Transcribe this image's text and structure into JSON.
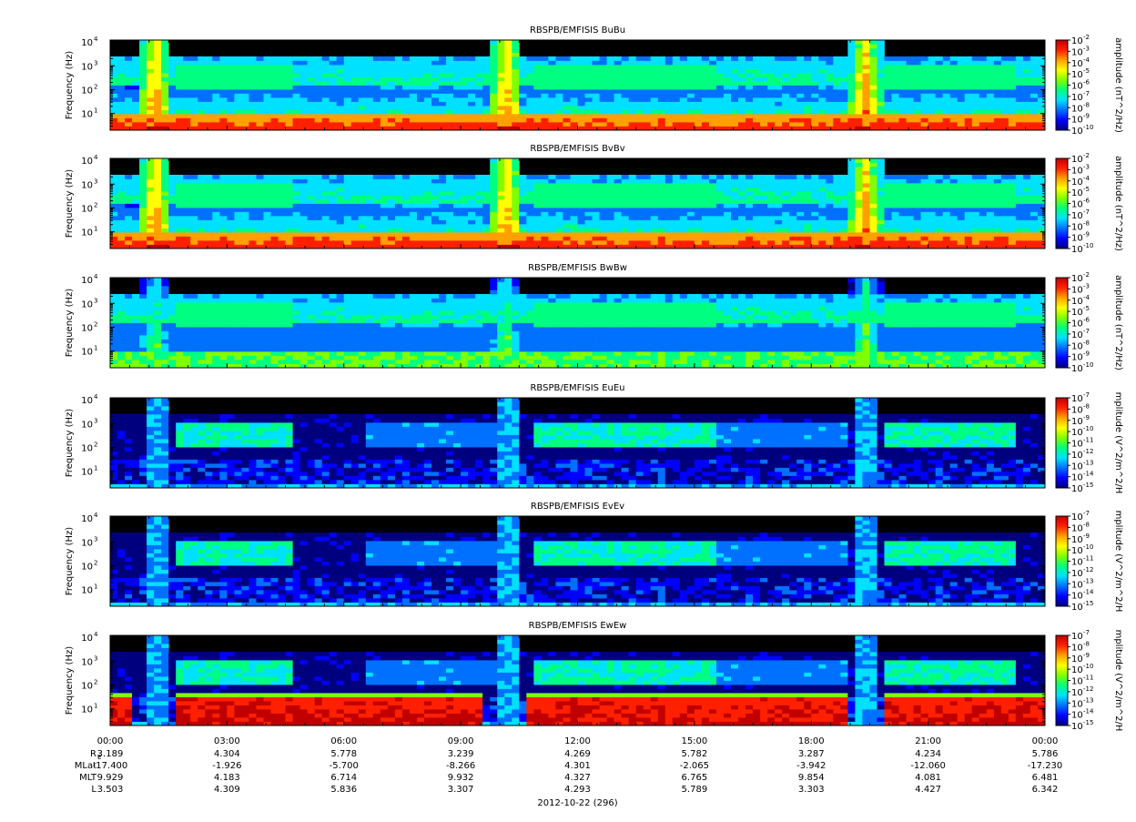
{
  "chart_data": {
    "type": "heatmap",
    "x_axis": {
      "ticks": [
        "00:00",
        "03:00",
        "06:00",
        "09:00",
        "12:00",
        "15:00",
        "18:00",
        "21:00",
        "00:00"
      ],
      "minor_per_major": 6,
      "date_label": "2012-10-22 (296)",
      "range_hours": [
        0,
        24
      ]
    },
    "ephemeris": {
      "rows": [
        {
          "label": "R",
          "sub": "E",
          "values": [
            "3.189",
            "4.304",
            "5.778",
            "3.239",
            "4.269",
            "5.782",
            "3.287",
            "4.234",
            "5.786"
          ]
        },
        {
          "label": "MLat",
          "sub": "",
          "values": [
            "-17.400",
            "-1.926",
            "-5.700",
            "-8.266",
            "4.301",
            "-2.065",
            "-3.942",
            "-12.060",
            "-17.230"
          ]
        },
        {
          "label": "MLT",
          "sub": "",
          "values": [
            "9.929",
            "4.183",
            "6.714",
            "9.932",
            "4.327",
            "6.765",
            "9.854",
            "4.081",
            "6.481"
          ]
        },
        {
          "label": "L",
          "sub": "",
          "values": [
            "3.503",
            "4.309",
            "5.836",
            "3.307",
            "4.293",
            "5.789",
            "3.303",
            "4.427",
            "6.342"
          ]
        }
      ]
    },
    "y_axis": {
      "label": "Frequency (Hz)",
      "scale": "log",
      "ticks": [
        {
          "base": "10",
          "exp": "1",
          "value": 10
        },
        {
          "base": "10",
          "exp": "2",
          "value": 100
        },
        {
          "base": "10",
          "exp": "3",
          "value": 1000
        },
        {
          "base": "10",
          "exp": "4",
          "value": 10000
        }
      ],
      "range": [
        2,
        12000
      ]
    },
    "panels": [
      {
        "title": "RBSPB/EMFISIS  BuBu",
        "kind": "B",
        "cb_label": "amplitude (nT^2/Hz)",
        "cb_exps": [
          "-2",
          "-3",
          "-4",
          "-5",
          "-6",
          "-7",
          "-8",
          "-9",
          "-10"
        ],
        "cb_range": [
          -10,
          -2
        ]
      },
      {
        "title": "RBSPB/EMFISIS  BvBv",
        "kind": "B",
        "cb_label": "amplitude (nT^2/Hz)",
        "cb_exps": [
          "-2",
          "-3",
          "-4",
          "-5",
          "-6",
          "-7",
          "-8",
          "-9",
          "-10"
        ],
        "cb_range": [
          -10,
          -2
        ]
      },
      {
        "title": "RBSPB/EMFISIS  BwBw",
        "kind": "B3",
        "cb_label": "amplitude (nT^2/Hz)",
        "cb_exps": [
          "-2",
          "-3",
          "-4",
          "-5",
          "-6",
          "-7",
          "-8",
          "-9",
          "-10"
        ],
        "cb_range": [
          -10,
          -2
        ]
      },
      {
        "title": "RBSPB/EMFISIS  EuEu",
        "kind": "E",
        "cb_label": "mplitude (V^2/m^2/H",
        "cb_exps": [
          "-7",
          "-8",
          "-9",
          "-10",
          "-11",
          "-12",
          "-13",
          "-14",
          "-15"
        ],
        "cb_range": [
          -15,
          -7
        ]
      },
      {
        "title": "RBSPB/EMFISIS  EvEv",
        "kind": "E",
        "cb_label": "mplitude (V^2/m^2/H",
        "cb_exps": [
          "-7",
          "-8",
          "-9",
          "-10",
          "-11",
          "-12",
          "-13",
          "-14",
          "-15"
        ],
        "cb_range": [
          -15,
          -7
        ]
      },
      {
        "title": "RBSPB/EMFISIS  EwEw",
        "kind": "Ew",
        "cb_label": "mplitude (V^2/m^2/H",
        "cb_exps": [
          "-7",
          "-8",
          "-9",
          "-10",
          "-11",
          "-12",
          "-13",
          "-14",
          "-15"
        ],
        "cb_range": [
          -15,
          -7
        ]
      }
    ],
    "colormap": [
      "#000000",
      "#00007f",
      "#0000ff",
      "#0070ff",
      "#00e0ff",
      "#00ff80",
      "#80ff00",
      "#ffff00",
      "#ffa000",
      "#ff2000",
      "#c00000"
    ],
    "grid": false
  }
}
